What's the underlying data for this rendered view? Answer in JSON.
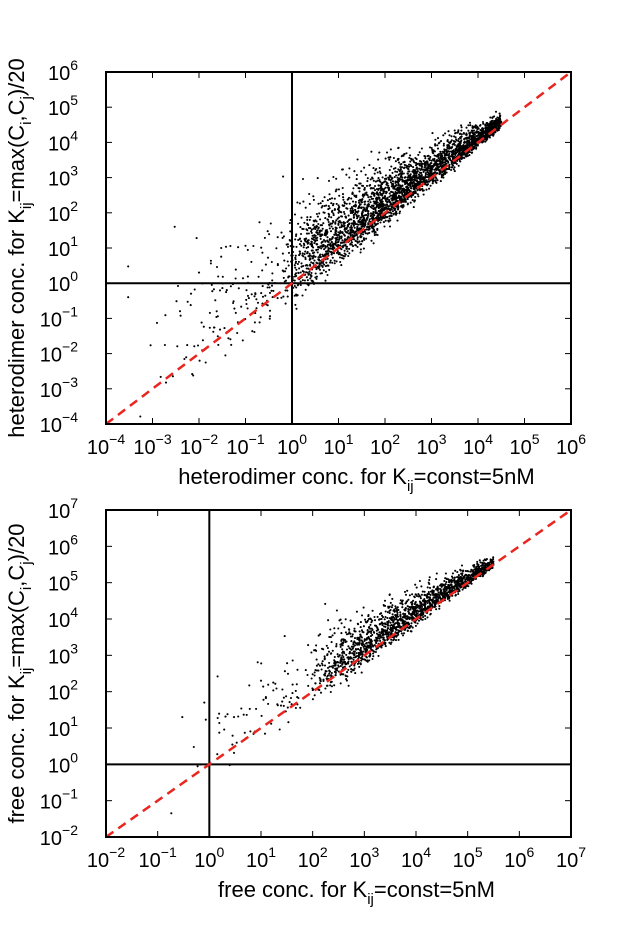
{
  "chart_data": [
    {
      "type": "scatter",
      "xlabel_main": "heterodimer conc. for K",
      "xlabel_sub": "ij",
      "xlabel_tail": "=const=5nM",
      "ylabel_main": "heterodimer conc. for K",
      "ylabel_sub": "ij",
      "ylabel_tail1": "=max(C",
      "ylabel_sub_i": "i",
      "ylabel_mid": ",C",
      "ylabel_sub_j": "j",
      "ylabel_tail2": ")/20",
      "xscale": "log",
      "yscale": "log",
      "xlim": [
        0.0001,
        1000000
      ],
      "ylim": [
        0.0001,
        1000000
      ],
      "xtick_exponents": [
        -4,
        -3,
        -2,
        -1,
        0,
        1,
        2,
        3,
        4,
        5,
        6
      ],
      "ytick_exponents": [
        -4,
        -3,
        -2,
        -1,
        0,
        1,
        2,
        3,
        4,
        5,
        6
      ],
      "tick_base": "10",
      "reference_lines": {
        "vertical_x": 1,
        "horizontal_y": 1
      },
      "diagonal": {
        "x": [
          0.0001,
          1000000
        ],
        "y": [
          0.0001,
          1000000
        ],
        "color": "#e8261f",
        "style": "dashed"
      },
      "grid": false,
      "point_color": "#000000",
      "point_cloud": {
        "description_only": false,
        "n_points": 3200,
        "log_x_range": [
          -3.8,
          4.5
        ],
        "median_log_ratio": 0.2,
        "spread_at_low_x": 1.6,
        "spread_at_high_x": 0.15
      },
      "sample_points": [
        {
          "x": 0.0003,
          "y": 3
        },
        {
          "x": 0.0003,
          "y": 0.4
        },
        {
          "x": 0.003,
          "y": 40
        },
        {
          "x": 0.01,
          "y": 2
        },
        {
          "x": 0.03,
          "y": 10
        },
        {
          "x": 0.3,
          "y": 30
        },
        {
          "x": 1,
          "y": 20
        },
        {
          "x": 10,
          "y": 100
        },
        {
          "x": 100,
          "y": 300
        },
        {
          "x": 1000,
          "y": 1500
        },
        {
          "x": 10000,
          "y": 12000
        },
        {
          "x": 30000,
          "y": 40000
        }
      ]
    },
    {
      "type": "scatter",
      "xlabel_main": "free conc. for K",
      "xlabel_sub": "ij",
      "xlabel_tail": "=const=5nM",
      "ylabel_main": "free conc. for K",
      "ylabel_sub": "ij",
      "ylabel_tail1": "=max(C",
      "ylabel_sub_i": "i",
      "ylabel_mid": ",C",
      "ylabel_sub_j": "j",
      "ylabel_tail2": ")/20",
      "xscale": "log",
      "yscale": "log",
      "xlim": [
        0.01,
        10000000
      ],
      "ylim": [
        0.01,
        10000000
      ],
      "xtick_exponents": [
        -2,
        -1,
        0,
        1,
        2,
        3,
        4,
        5,
        6,
        7
      ],
      "ytick_exponents": [
        -2,
        -1,
        0,
        1,
        2,
        3,
        4,
        5,
        6,
        7
      ],
      "tick_base": "10",
      "reference_lines": {
        "vertical_x": 1,
        "horizontal_y": 1
      },
      "diagonal": {
        "x": [
          0.01,
          10000000
        ],
        "y": [
          0.01,
          10000000
        ],
        "color": "#e8261f",
        "style": "dashed"
      },
      "grid": false,
      "point_color": "#000000",
      "point_cloud": {
        "description_only": false,
        "n_points": 1800,
        "log_x_range": [
          -0.8,
          5.5
        ],
        "median_log_ratio": 0.25,
        "spread_at_low_x": 1.1,
        "spread_at_high_x": 0.1
      },
      "sample_points": [
        {
          "x": 0.3,
          "y": 20
        },
        {
          "x": 0.5,
          "y": 3
        },
        {
          "x": 0.8,
          "y": 50
        },
        {
          "x": 3,
          "y": 20
        },
        {
          "x": 10,
          "y": 200
        },
        {
          "x": 100,
          "y": 300
        },
        {
          "x": 1000,
          "y": 1500
        },
        {
          "x": 10000,
          "y": 12000
        },
        {
          "x": 100000,
          "y": 150000
        },
        {
          "x": 300000,
          "y": 400000
        }
      ]
    }
  ]
}
